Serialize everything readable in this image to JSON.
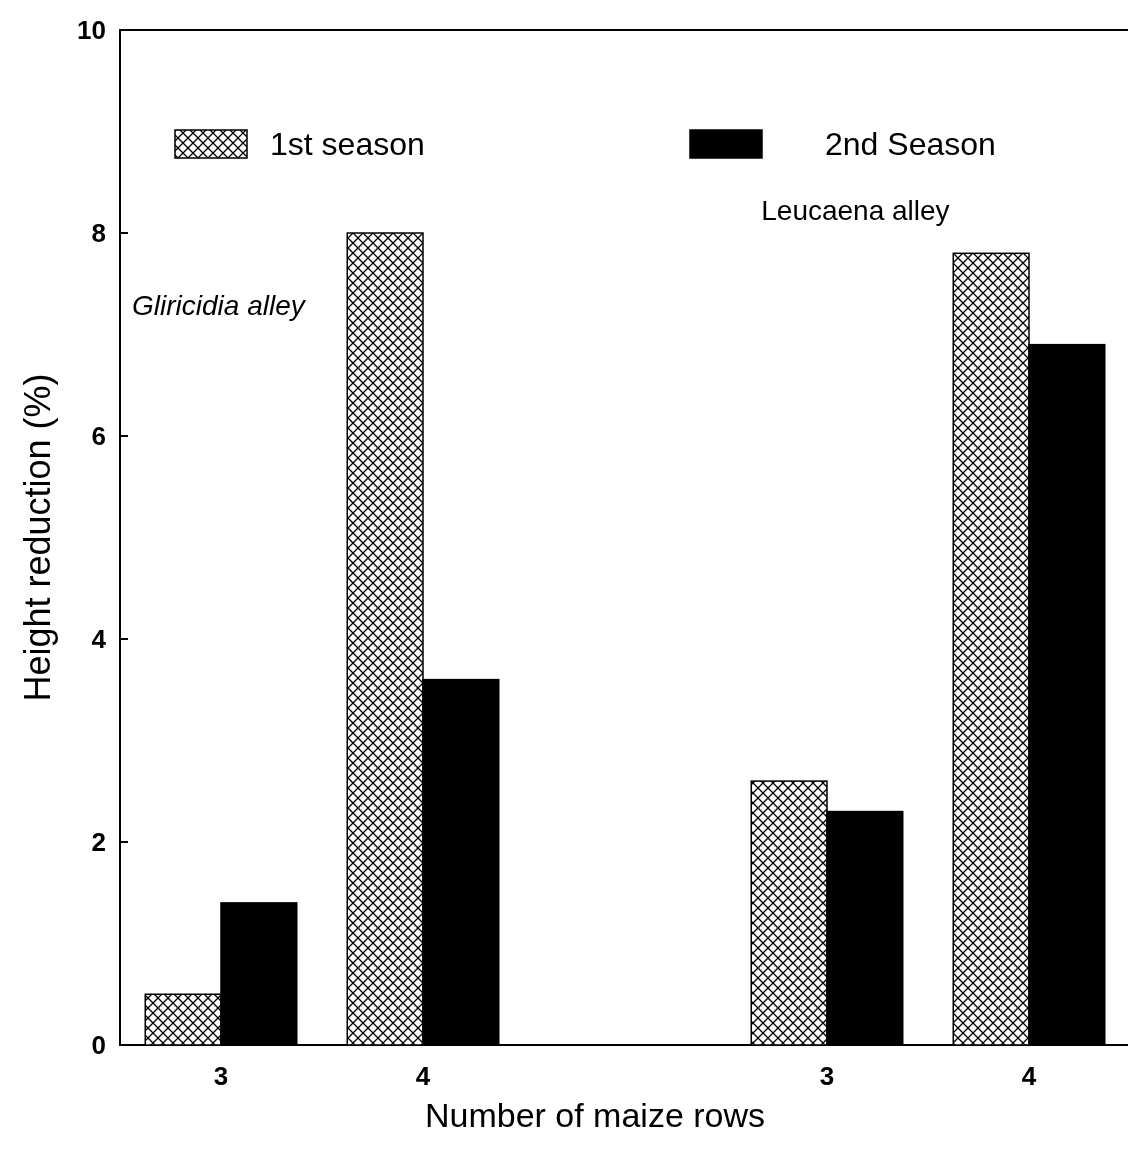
{
  "chart_data": {
    "type": "bar",
    "xlabel": "Number of maize rows",
    "ylabel": "Height reduction (%)",
    "categories": [
      "3",
      "4",
      null,
      "3",
      "4"
    ],
    "series": [
      {
        "name": "1st season",
        "color": "#000000",
        "values": [
          0.5,
          8.0,
          null,
          2.6,
          7.8
        ]
      },
      {
        "name": "2nd Season",
        "color": "#000000",
        "values": [
          1.4,
          3.6,
          null,
          2.3,
          6.9
        ]
      }
    ],
    "ylim": [
      0,
      10
    ],
    "yticks": [
      0,
      2,
      4,
      6,
      8,
      10
    ],
    "legend": "top",
    "annotations": [
      "Gliricidia alley",
      "Leucaena alley"
    ]
  }
}
